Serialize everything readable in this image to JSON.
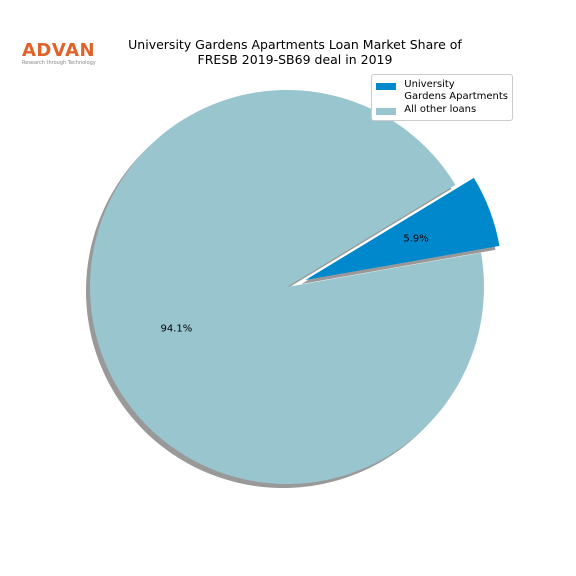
{
  "logo": {
    "text": "ADVAN",
    "tagline": "Research through Technology"
  },
  "chart_data": {
    "type": "pie",
    "title": "University Gardens Apartments Loan Market Share of\nFRESB 2019-SB69 deal in 2019",
    "categories": [
      "University\nGardens Apartments",
      "All other loans"
    ],
    "values": [
      5.9,
      94.1
    ],
    "value_labels": [
      "5.9%",
      "94.1%"
    ],
    "colors": [
      "#0088cc",
      "#99c5cf"
    ],
    "shadow": true,
    "legend": "upper right"
  }
}
